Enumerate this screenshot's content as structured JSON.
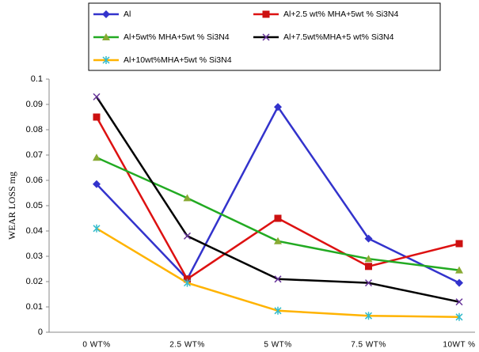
{
  "chart_data": {
    "type": "line",
    "y_label": "WEAR LOSS mg",
    "categories": [
      "0 WT%",
      "2.5 WT%",
      "5 WT%",
      "7.5 WT%",
      "10WT %"
    ],
    "ylim": [
      0,
      0.1
    ],
    "yticks": [
      0,
      0.01,
      0.02,
      0.03,
      0.04,
      0.05,
      0.06,
      0.07,
      0.08,
      0.09,
      0.1
    ],
    "series": [
      {
        "name": "Al",
        "color": "#3333cc",
        "marker": "diamond",
        "marker_color": "#3333cc",
        "values": [
          0.0585,
          0.021,
          0.089,
          0.037,
          0.0195
        ]
      },
      {
        "name": "Al+2.5 wt% MHA+5wt % Si3N4",
        "color": "#dd1111",
        "marker": "square",
        "marker_color": "#cc1111",
        "values": [
          0.085,
          0.021,
          0.045,
          0.026,
          0.035
        ]
      },
      {
        "name": "Al+5wt% MHA+5wt % Si3N4",
        "color": "#22aa22",
        "marker": "triangle",
        "marker_color": "#88aa33",
        "values": [
          0.069,
          0.053,
          0.036,
          0.029,
          0.0245
        ]
      },
      {
        "name": "Al+7.5wt%MHA+5 wt% Si3N4",
        "color": "#000000",
        "marker": "x",
        "marker_color": "#663399",
        "values": [
          0.093,
          0.038,
          0.021,
          0.0195,
          0.012
        ]
      },
      {
        "name": "Al+10wt%MHA+5wt % Si3N4",
        "color": "#ffb300",
        "marker": "star",
        "marker_color": "#33bbcc",
        "values": [
          0.041,
          0.0195,
          0.0085,
          0.0065,
          0.006
        ]
      }
    ]
  }
}
